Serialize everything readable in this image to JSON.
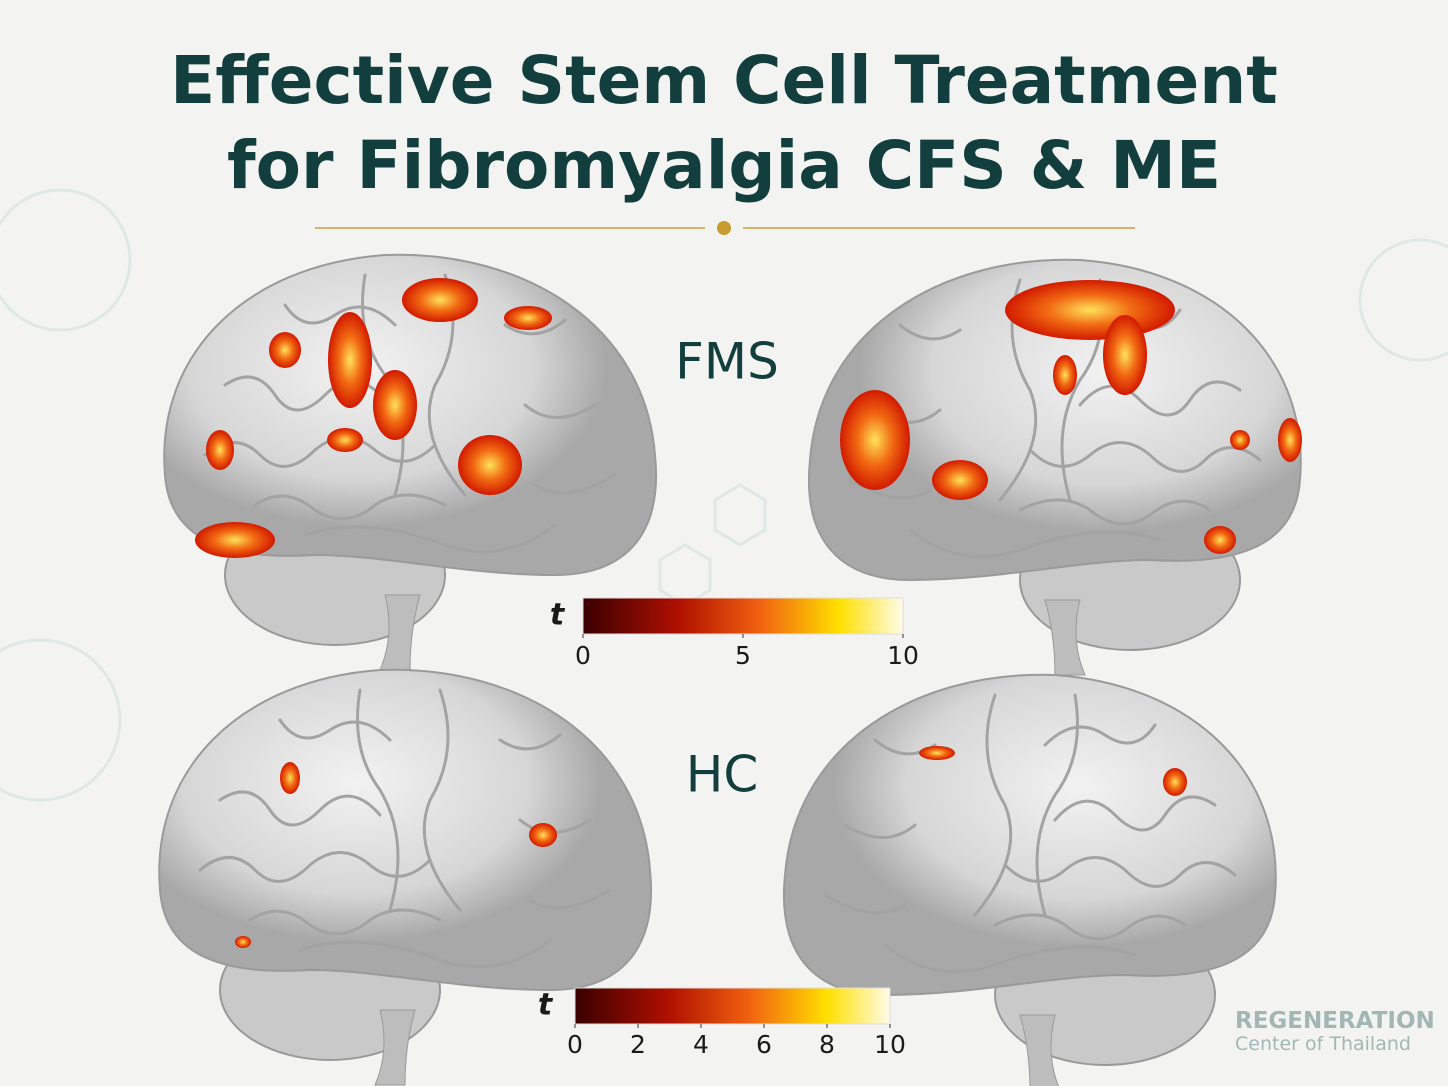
{
  "header": {
    "title_lines": [
      "Effective Stem Cell Treatment",
      "for Fibromyalgia CFS & ME"
    ]
  },
  "panels": [
    {
      "label": "FMS",
      "colorbar": {
        "label": "t",
        "range": [
          0,
          10
        ],
        "ticks": [
          0,
          5,
          10
        ]
      }
    },
    {
      "label": "HC",
      "colorbar": {
        "label": "t",
        "range": [
          0,
          10
        ],
        "ticks": [
          0,
          2,
          4,
          6,
          8,
          10
        ]
      }
    }
  ],
  "logo": {
    "name": "REGENERATION",
    "tagline": "Center of Thailand"
  }
}
